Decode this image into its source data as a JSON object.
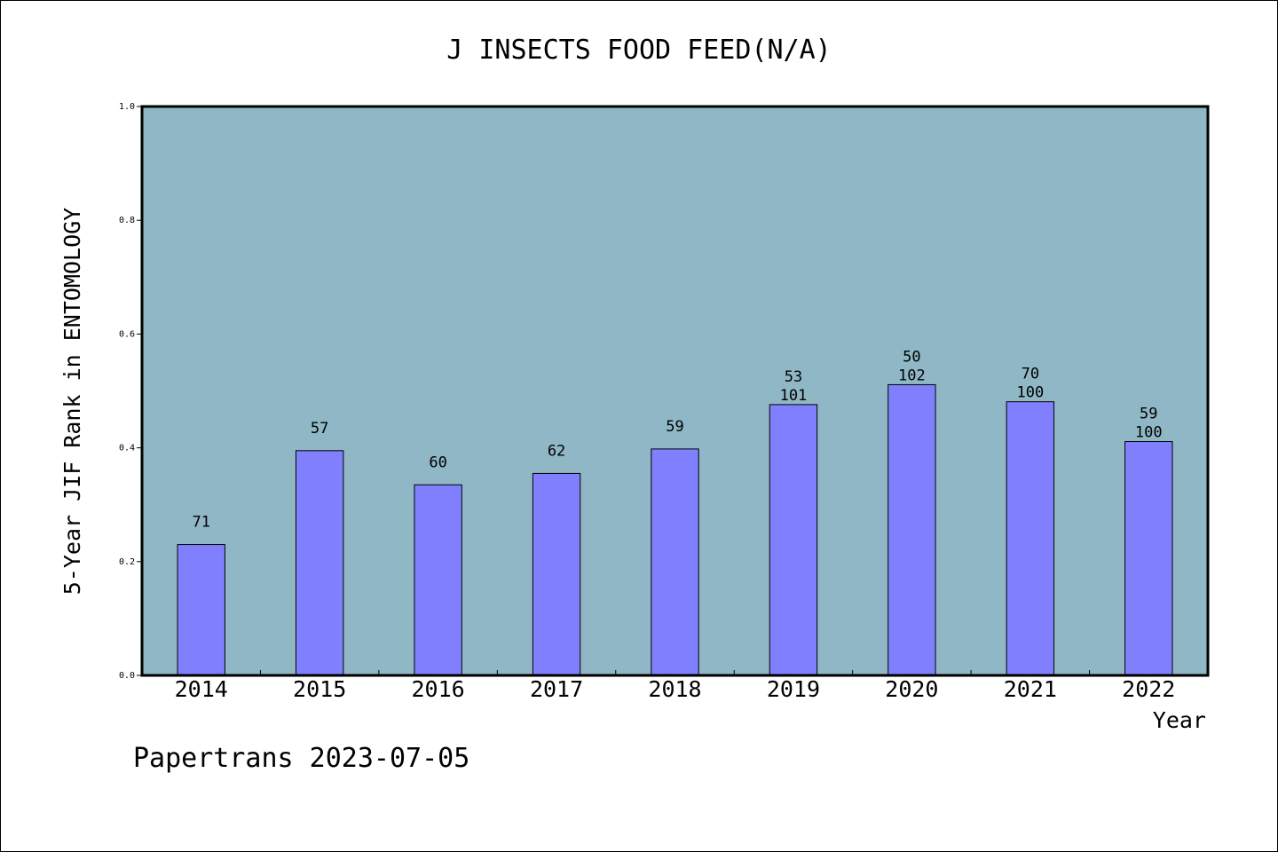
{
  "chart_data": {
    "type": "bar",
    "title": "J INSECTS FOOD FEED(N/A)",
    "xlabel": "Year",
    "ylabel": "5-Year JIF Rank in ENTOMOLOGY",
    "ylim": [
      0.0,
      1.0
    ],
    "yticks": [
      "0.0",
      "0.2",
      "0.4",
      "0.6",
      "0.8",
      "1.0"
    ],
    "grid": false,
    "categories": [
      "2014",
      "2015",
      "2016",
      "2017",
      "2018",
      "2019",
      "2020",
      "2021",
      "2022"
    ],
    "values": [
      0.23,
      0.395,
      0.335,
      0.355,
      0.398,
      0.476,
      0.511,
      0.481,
      0.411
    ],
    "rank_labels": [
      "71",
      "57",
      "60",
      "62",
      "59",
      "53",
      "50",
      "70",
      "59"
    ],
    "total_labels": [
      "",
      "",
      "",
      "",
      "",
      "101",
      "102",
      "100",
      "100"
    ],
    "colors": {
      "plot_background": "#8fb7c5",
      "bar": "#8080ff",
      "bar_edge": "#000000"
    }
  },
  "footer": {
    "watermark": "Papertrans 2023-07-05"
  }
}
